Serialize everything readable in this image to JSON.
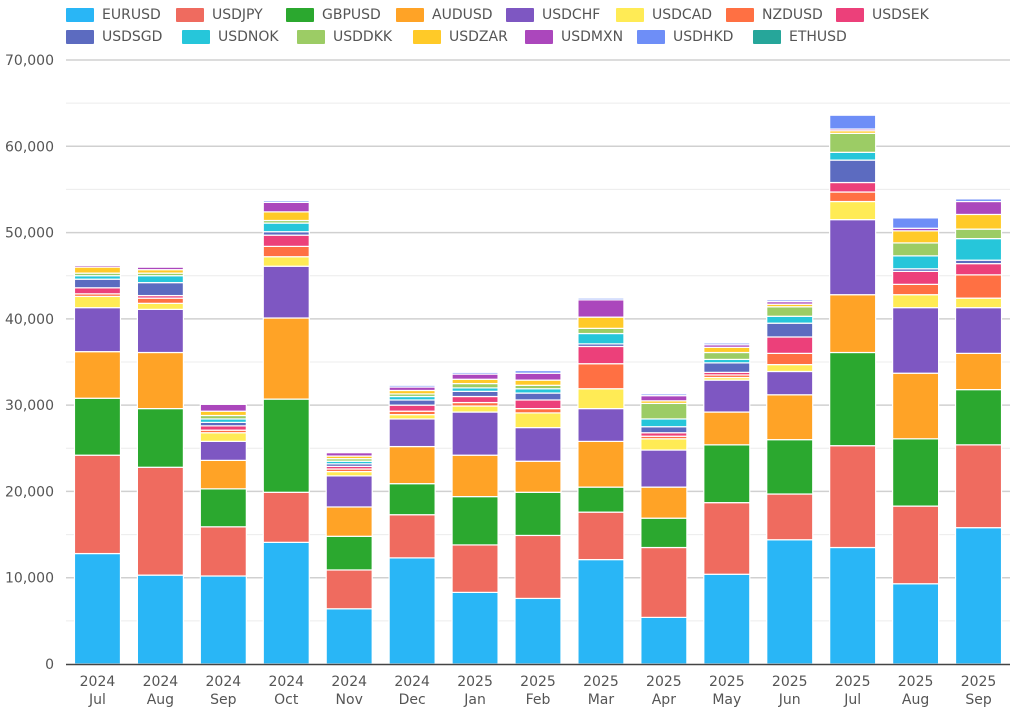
{
  "chart_data": {
    "type": "bar",
    "stacked": true,
    "title": "",
    "xlabel": "",
    "ylabel": "",
    "ylim": [
      0,
      70000
    ],
    "yticks": [
      0,
      10000,
      20000,
      30000,
      40000,
      50000,
      60000,
      70000
    ],
    "ytick_labels": [
      "0",
      "10,000",
      "20,000",
      "30,000",
      "40,000",
      "50,000",
      "60,000",
      "70,000"
    ],
    "grid": true,
    "legend_position": "top",
    "categories": [
      [
        "2024",
        "Jul"
      ],
      [
        "2024",
        "Aug"
      ],
      [
        "2024",
        "Sep"
      ],
      [
        "2024",
        "Oct"
      ],
      [
        "2024",
        "Nov"
      ],
      [
        "2024",
        "Dec"
      ],
      [
        "2025",
        "Jan"
      ],
      [
        "2025",
        "Feb"
      ],
      [
        "2025",
        "Mar"
      ],
      [
        "2025",
        "Apr"
      ],
      [
        "2025",
        "May"
      ],
      [
        "2025",
        "Jun"
      ],
      [
        "2025",
        "Jul"
      ],
      [
        "2025",
        "Aug"
      ],
      [
        "2025",
        "Sep"
      ]
    ],
    "series": [
      {
        "name": "EURUSD",
        "color": "#29b6f6",
        "values": [
          12800,
          10300,
          10200,
          14100,
          6400,
          12300,
          8300,
          7600,
          12100,
          5400,
          10400,
          14400,
          13500,
          9300,
          15800
        ]
      },
      {
        "name": "USDJPY",
        "color": "#ef6b5f",
        "values": [
          11400,
          12500,
          5700,
          5800,
          4500,
          5000,
          5500,
          7300,
          5500,
          8100,
          8300,
          5300,
          11800,
          9000,
          9600
        ]
      },
      {
        "name": "GBPUSD",
        "color": "#2ba82f",
        "values": [
          6600,
          6800,
          4400,
          10800,
          3900,
          3600,
          5600,
          5000,
          2900,
          3400,
          6700,
          6300,
          10800,
          7800,
          6400
        ]
      },
      {
        "name": "AUDUSD",
        "color": "#ffa326",
        "values": [
          5400,
          6500,
          3300,
          9400,
          3400,
          4300,
          4800,
          3600,
          5300,
          3600,
          3800,
          5200,
          6700,
          7600,
          4200
        ]
      },
      {
        "name": "USDCHF",
        "color": "#7e57c2",
        "values": [
          5100,
          5000,
          2200,
          6000,
          3600,
          3200,
          5000,
          3900,
          3800,
          4300,
          3700,
          2700,
          8700,
          7600,
          5300
        ]
      },
      {
        "name": "USDCAD",
        "color": "#ffeb55",
        "values": [
          1300,
          700,
          1000,
          1100,
          500,
          500,
          700,
          1700,
          2300,
          1300,
          300,
          800,
          2100,
          1500,
          1100
        ]
      },
      {
        "name": "NZDUSD",
        "color": "#ff7043",
        "values": [
          300,
          600,
          300,
          1200,
          300,
          400,
          400,
          500,
          2900,
          300,
          300,
          1300,
          1100,
          1200,
          2700
        ]
      },
      {
        "name": "USDSEK",
        "color": "#ec407a",
        "values": [
          700,
          300,
          500,
          1300,
          300,
          700,
          700,
          1000,
          2000,
          400,
          300,
          1900,
          1100,
          1500,
          1300
        ]
      },
      {
        "name": "USDSGD",
        "color": "#5c6bc0",
        "values": [
          1000,
          1500,
          400,
          400,
          300,
          600,
          600,
          800,
          300,
          700,
          1100,
          1600,
          2600,
          300,
          400
        ]
      },
      {
        "name": "USDNOK",
        "color": "#26c6da",
        "values": [
          400,
          800,
          400,
          1000,
          300,
          400,
          400,
          500,
          1200,
          900,
          400,
          800,
          900,
          1500,
          2500
        ]
      },
      {
        "name": "USDDKK",
        "color": "#9ccc65",
        "values": [
          300,
          300,
          400,
          300,
          300,
          300,
          500,
          400,
          600,
          1800,
          800,
          1100,
          2200,
          1500,
          1100
        ]
      },
      {
        "name": "USDZAR",
        "color": "#ffca28",
        "values": [
          700,
          400,
          500,
          1000,
          300,
          400,
          500,
          600,
          1300,
          300,
          600,
          300,
          300,
          1400,
          1700
        ]
      },
      {
        "name": "USDMXN",
        "color": "#ab47bc",
        "values": [
          200,
          300,
          800,
          1100,
          400,
          400,
          600,
          800,
          2000,
          600,
          300,
          300,
          200,
          300,
          1500
        ]
      },
      {
        "name": "USDHKD",
        "color": "#6e8ef7",
        "values": [
          100,
          100,
          100,
          200,
          100,
          200,
          200,
          300,
          200,
          200,
          200,
          200,
          1600,
          1200,
          300
        ]
      },
      {
        "name": "ETHUSD",
        "color": "#26a69a",
        "values": [
          0,
          0,
          0,
          0,
          0,
          0,
          0,
          0,
          0,
          0,
          0,
          0,
          0,
          0,
          0
        ]
      }
    ]
  }
}
